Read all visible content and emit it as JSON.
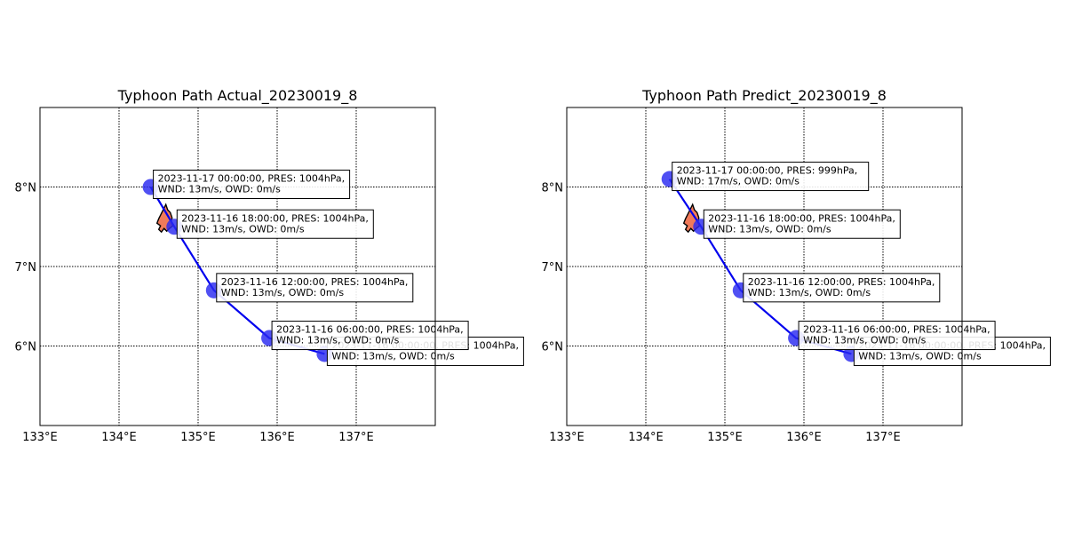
{
  "chart_data": [
    {
      "type": "scatter",
      "title": "Typhoon Path Actual_20230019_8",
      "xlim": [
        133,
        138
      ],
      "ylim": [
        5,
        9
      ],
      "x_ticks": [
        133,
        134,
        135,
        136,
        137
      ],
      "x_tick_labels": [
        "133°E",
        "134°E",
        "135°E",
        "136°E",
        "137°E"
      ],
      "y_ticks": [
        6,
        7,
        8
      ],
      "y_tick_labels": [
        "6°N",
        "7°N",
        "8°N"
      ],
      "grid": true,
      "path_color": "#0000ee",
      "marker_color": "#2a2af0",
      "land_color": "#f07a5a",
      "points": [
        {
          "lon": 136.6,
          "lat": 5.9,
          "line1": "2023-11-16 00:00:00, PRES: 1004hPa,",
          "line2": "WND: 13m/s, OWD: 0m/s"
        },
        {
          "lon": 135.9,
          "lat": 6.1,
          "line1": "2023-11-16 06:00:00, PRES: 1004hPa,",
          "line2": "WND: 13m/s, OWD: 0m/s"
        },
        {
          "lon": 135.2,
          "lat": 6.7,
          "line1": "2023-11-16 12:00:00, PRES: 1004hPa,",
          "line2": "WND: 13m/s, OWD: 0m/s"
        },
        {
          "lon": 134.7,
          "lat": 7.5,
          "line1": "2023-11-16 18:00:00, PRES: 1004hPa,",
          "line2": "WND: 13m/s, OWD: 0m/s"
        },
        {
          "lon": 134.4,
          "lat": 8.0,
          "line1": "2023-11-17 00:00:00, PRES: 1004hPa,",
          "line2": "WND: 13m/s, OWD: 0m/s"
        }
      ]
    },
    {
      "type": "scatter",
      "title": "Typhoon Path Predict_20230019_8",
      "xlim": [
        133,
        138
      ],
      "ylim": [
        5,
        9
      ],
      "x_ticks": [
        133,
        134,
        135,
        136,
        137
      ],
      "x_tick_labels": [
        "133°E",
        "134°E",
        "135°E",
        "136°E",
        "137°E"
      ],
      "y_ticks": [
        6,
        7,
        8
      ],
      "y_tick_labels": [
        "6°N",
        "7°N",
        "8°N"
      ],
      "grid": true,
      "path_color": "#0000ee",
      "marker_color": "#2a2af0",
      "land_color": "#f07a5a",
      "points": [
        {
          "lon": 136.6,
          "lat": 5.9,
          "line1": "2023-11-16 00:00:00, PRES: 1004hPa,",
          "line2": "WND: 13m/s, OWD: 0m/s"
        },
        {
          "lon": 135.9,
          "lat": 6.1,
          "line1": "2023-11-16 06:00:00, PRES: 1004hPa,",
          "line2": "WND: 13m/s, OWD: 0m/s"
        },
        {
          "lon": 135.2,
          "lat": 6.7,
          "line1": "2023-11-16 12:00:00, PRES: 1004hPa,",
          "line2": "WND: 13m/s, OWD: 0m/s"
        },
        {
          "lon": 134.7,
          "lat": 7.5,
          "line1": "2023-11-16 18:00:00, PRES: 1004hPa,",
          "line2": "WND: 13m/s, OWD: 0m/s"
        },
        {
          "lon": 134.3,
          "lat": 8.1,
          "line1": "2023-11-17 00:00:00, PRES: 999hPa,",
          "line2": "WND: 17m/s, OWD: 0m/s"
        }
      ]
    }
  ]
}
